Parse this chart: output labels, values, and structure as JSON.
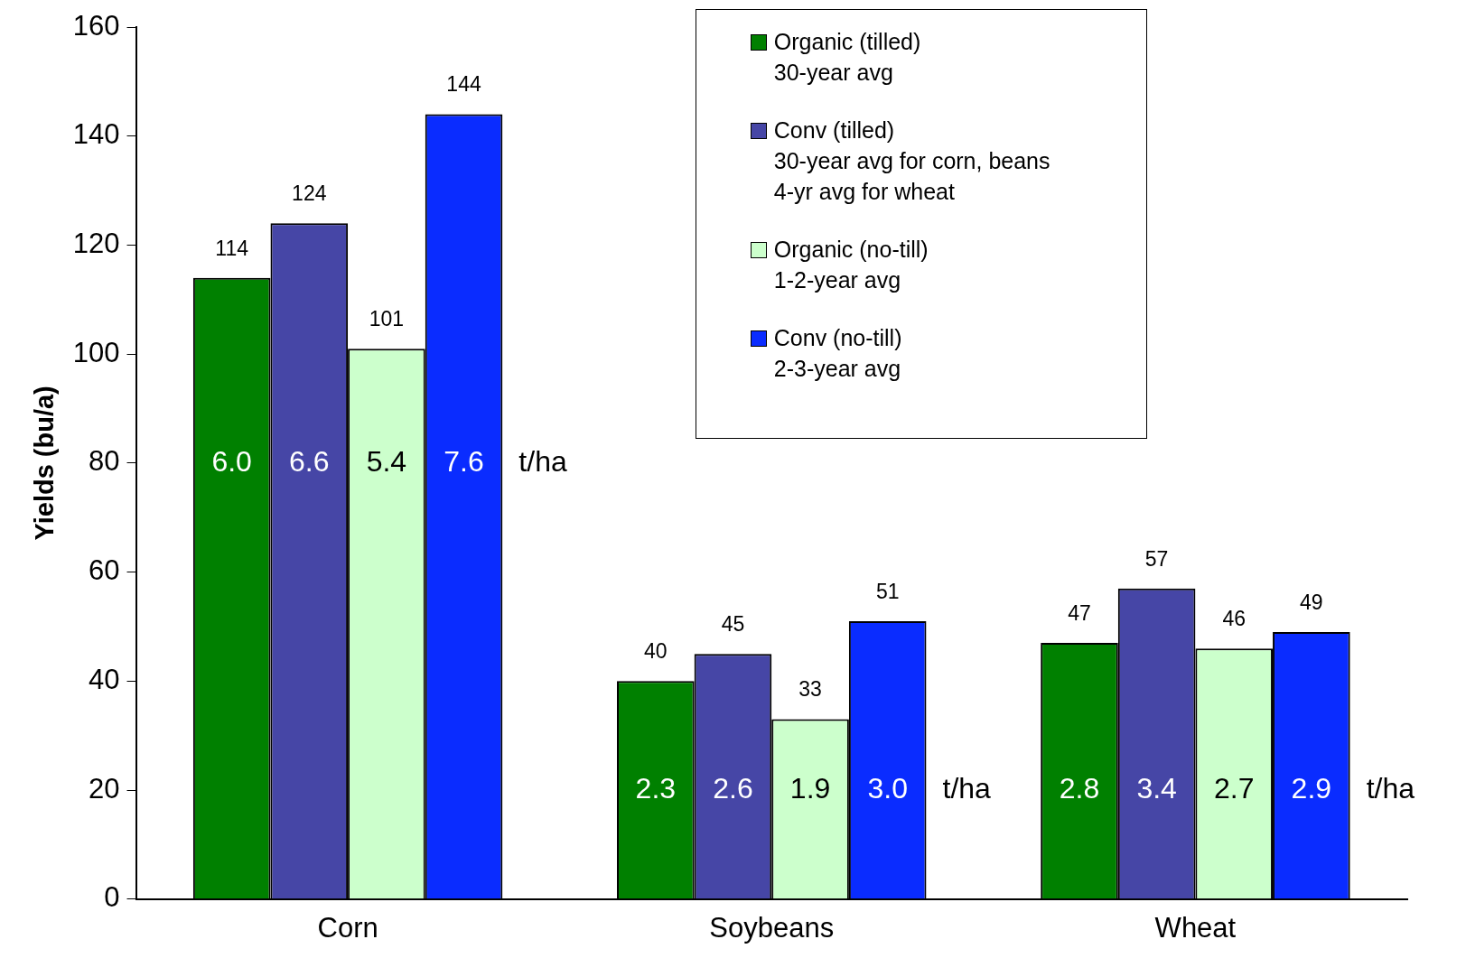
{
  "chart_data": {
    "type": "bar",
    "ylabel": "Yields (bu/a)",
    "categories": [
      "Corn",
      "Soybeans",
      "Wheat"
    ],
    "series": [
      {
        "name": "Organic (tilled)\n30-year avg",
        "color": "#008000",
        "values": [
          114,
          40,
          47
        ]
      },
      {
        "name": "Conv (tilled)\n30-year avg for corn, beans\n4-yr avg for wheat",
        "color": "#4646a6",
        "values": [
          124,
          45,
          57
        ]
      },
      {
        "name": "Organic (no-till)\n1-2-year avg",
        "color": "#ccffcc",
        "values": [
          101,
          33,
          46
        ]
      },
      {
        "name": "Conv (no-till)\n2-3-year avg",
        "color": "#0a2cff",
        "values": [
          144,
          51,
          49
        ]
      }
    ],
    "ylim": [
      0,
      160
    ],
    "yticks": [
      0,
      20,
      40,
      60,
      80,
      100,
      120,
      140,
      160
    ],
    "grid": false,
    "legend": "top right",
    "data_labels": true,
    "annotations": [
      "6.0",
      "6.6",
      "5.4",
      "7.6",
      "t/ha",
      "2.3",
      "2.6",
      "1.9",
      "3.0",
      "t/ha",
      "2.8",
      "3.4",
      "2.7",
      "2.9",
      "t/ha"
    ]
  }
}
